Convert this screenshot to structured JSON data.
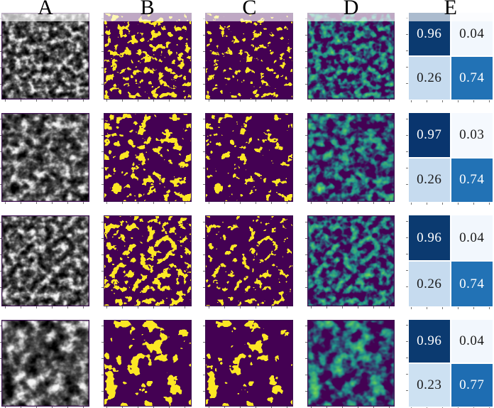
{
  "figure": {
    "type": "segmentation-evaluation-figure",
    "headers": [
      {
        "label": "A"
      },
      {
        "label": "B"
      },
      {
        "label": "C"
      },
      {
        "label": "D"
      },
      {
        "label": "E"
      }
    ],
    "palette": {
      "mask_background": "#440154",
      "mask_foreground": "#fde725",
      "heatmap_fringe": "#21918c",
      "matrix_colormap": "Blues",
      "matrix_dark": "#0b3a70",
      "matrix_mid": "#2272b5",
      "matrix_light": "#c6dbef",
      "matrix_pale": "#f2f7fd"
    },
    "rows": [
      {
        "images": [
          {
            "name": "grayscale-micrograph",
            "kind": "grayscale",
            "seed": 7,
            "freq": "0.105 0.115",
            "oct": 4,
            "bg": "#e9e9e9"
          },
          {
            "name": "binary-mask",
            "kind": "mask",
            "seed": 7,
            "freq": "0.105 0.115",
            "oct": 3,
            "shift": 0,
            "bg": "#440154"
          },
          {
            "name": "binary-mask",
            "kind": "mask",
            "seed": 7,
            "freq": "0.105 0.115",
            "oct": 3,
            "shift": -0.05,
            "bg": "#440154"
          },
          {
            "name": "probability-heatmap",
            "kind": "heatmap",
            "seed": 7,
            "freq": "0.105 0.115",
            "oct": 3,
            "bg": "#440154"
          }
        ],
        "matrix": {
          "cells": [
            {
              "value": "0.96",
              "bg": "#0b3a70",
              "fg": "#ffffff"
            },
            {
              "value": "0.04",
              "bg": "#f2f7fd",
              "fg": "#1a1a1a"
            },
            {
              "value": "0.26",
              "bg": "#c6dbef",
              "fg": "#1a1a1a"
            },
            {
              "value": "0.74",
              "bg": "#2272b5",
              "fg": "#ffffff"
            }
          ]
        }
      },
      {
        "images": [
          {
            "name": "grayscale-micrograph",
            "kind": "grayscale",
            "seed": 13,
            "freq": "0.082 0.092",
            "oct": 4,
            "bg": "#e9e9e9"
          },
          {
            "name": "binary-mask",
            "kind": "mask",
            "seed": 13,
            "freq": "0.082 0.092",
            "oct": 3,
            "shift": 0,
            "bg": "#440154"
          },
          {
            "name": "binary-mask",
            "kind": "mask",
            "seed": 13,
            "freq": "0.082 0.092",
            "oct": 3,
            "shift": -0.04,
            "bg": "#440154"
          },
          {
            "name": "probability-heatmap",
            "kind": "heatmap",
            "seed": 13,
            "freq": "0.082 0.092",
            "oct": 3,
            "bg": "#440154"
          }
        ],
        "matrix": {
          "cells": [
            {
              "value": "0.97",
              "bg": "#09356e",
              "fg": "#ffffff"
            },
            {
              "value": "0.03",
              "bg": "#f5f9fe",
              "fg": "#1a1a1a"
            },
            {
              "value": "0.26",
              "bg": "#c6dbef",
              "fg": "#1a1a1a"
            },
            {
              "value": "0.74",
              "bg": "#2272b5",
              "fg": "#ffffff"
            }
          ]
        }
      },
      {
        "images": [
          {
            "name": "grayscale-micrograph",
            "kind": "grayscale",
            "seed": 29,
            "freq": "0.095 0.105",
            "oct": 4,
            "bg": "#e9e9e9"
          },
          {
            "name": "binary-mask",
            "kind": "mask",
            "seed": 29,
            "freq": "0.095 0.105",
            "oct": 3,
            "shift": 0.02,
            "bg": "#440154"
          },
          {
            "name": "binary-mask",
            "kind": "mask",
            "seed": 29,
            "freq": "0.095 0.105",
            "oct": 3,
            "shift": -0.04,
            "bg": "#440154"
          },
          {
            "name": "probability-heatmap",
            "kind": "heatmap",
            "seed": 29,
            "freq": "0.095 0.105",
            "oct": 3,
            "bg": "#440154"
          }
        ],
        "matrix": {
          "cells": [
            {
              "value": "0.96",
              "bg": "#0b3a70",
              "fg": "#ffffff"
            },
            {
              "value": "0.04",
              "bg": "#f2f7fd",
              "fg": "#1a1a1a"
            },
            {
              "value": "0.26",
              "bg": "#c6dbef",
              "fg": "#1a1a1a"
            },
            {
              "value": "0.74",
              "bg": "#2272b5",
              "fg": "#ffffff"
            }
          ]
        }
      },
      {
        "images": [
          {
            "name": "grayscale-micrograph",
            "kind": "grayscale",
            "seed": 41,
            "freq": "0.058 0.068",
            "oct": 4,
            "bg": "#e9e9e9"
          },
          {
            "name": "binary-mask",
            "kind": "mask",
            "seed": 41,
            "freq": "0.058 0.068",
            "oct": 3,
            "shift": 0,
            "bg": "#440154"
          },
          {
            "name": "binary-mask",
            "kind": "mask",
            "seed": 41,
            "freq": "0.058 0.068",
            "oct": 3,
            "shift": -0.03,
            "bg": "#440154"
          },
          {
            "name": "probability-heatmap",
            "kind": "heatmap",
            "seed": 41,
            "freq": "0.058 0.068",
            "oct": 3,
            "bg": "#440154"
          }
        ],
        "matrix": {
          "cells": [
            {
              "value": "0.96",
              "bg": "#0b3a70",
              "fg": "#ffffff"
            },
            {
              "value": "0.04",
              "bg": "#f2f7fd",
              "fg": "#1a1a1a"
            },
            {
              "value": "0.23",
              "bg": "#cde1f2",
              "fg": "#1a1a1a"
            },
            {
              "value": "0.77",
              "bg": "#1e6db2",
              "fg": "#ffffff"
            }
          ]
        }
      }
    ]
  },
  "chart_data": [
    {
      "type": "heatmap",
      "panel": "E",
      "row": 1,
      "values": [
        [
          0.96,
          0.04
        ],
        [
          0.26,
          0.74
        ]
      ],
      "colormap": "Blues"
    },
    {
      "type": "heatmap",
      "panel": "E",
      "row": 2,
      "values": [
        [
          0.97,
          0.03
        ],
        [
          0.26,
          0.74
        ]
      ],
      "colormap": "Blues"
    },
    {
      "type": "heatmap",
      "panel": "E",
      "row": 3,
      "values": [
        [
          0.96,
          0.04
        ],
        [
          0.26,
          0.74
        ]
      ],
      "colormap": "Blues"
    },
    {
      "type": "heatmap",
      "panel": "E",
      "row": 4,
      "values": [
        [
          0.96,
          0.04
        ],
        [
          0.23,
          0.77
        ]
      ],
      "colormap": "Blues"
    }
  ]
}
